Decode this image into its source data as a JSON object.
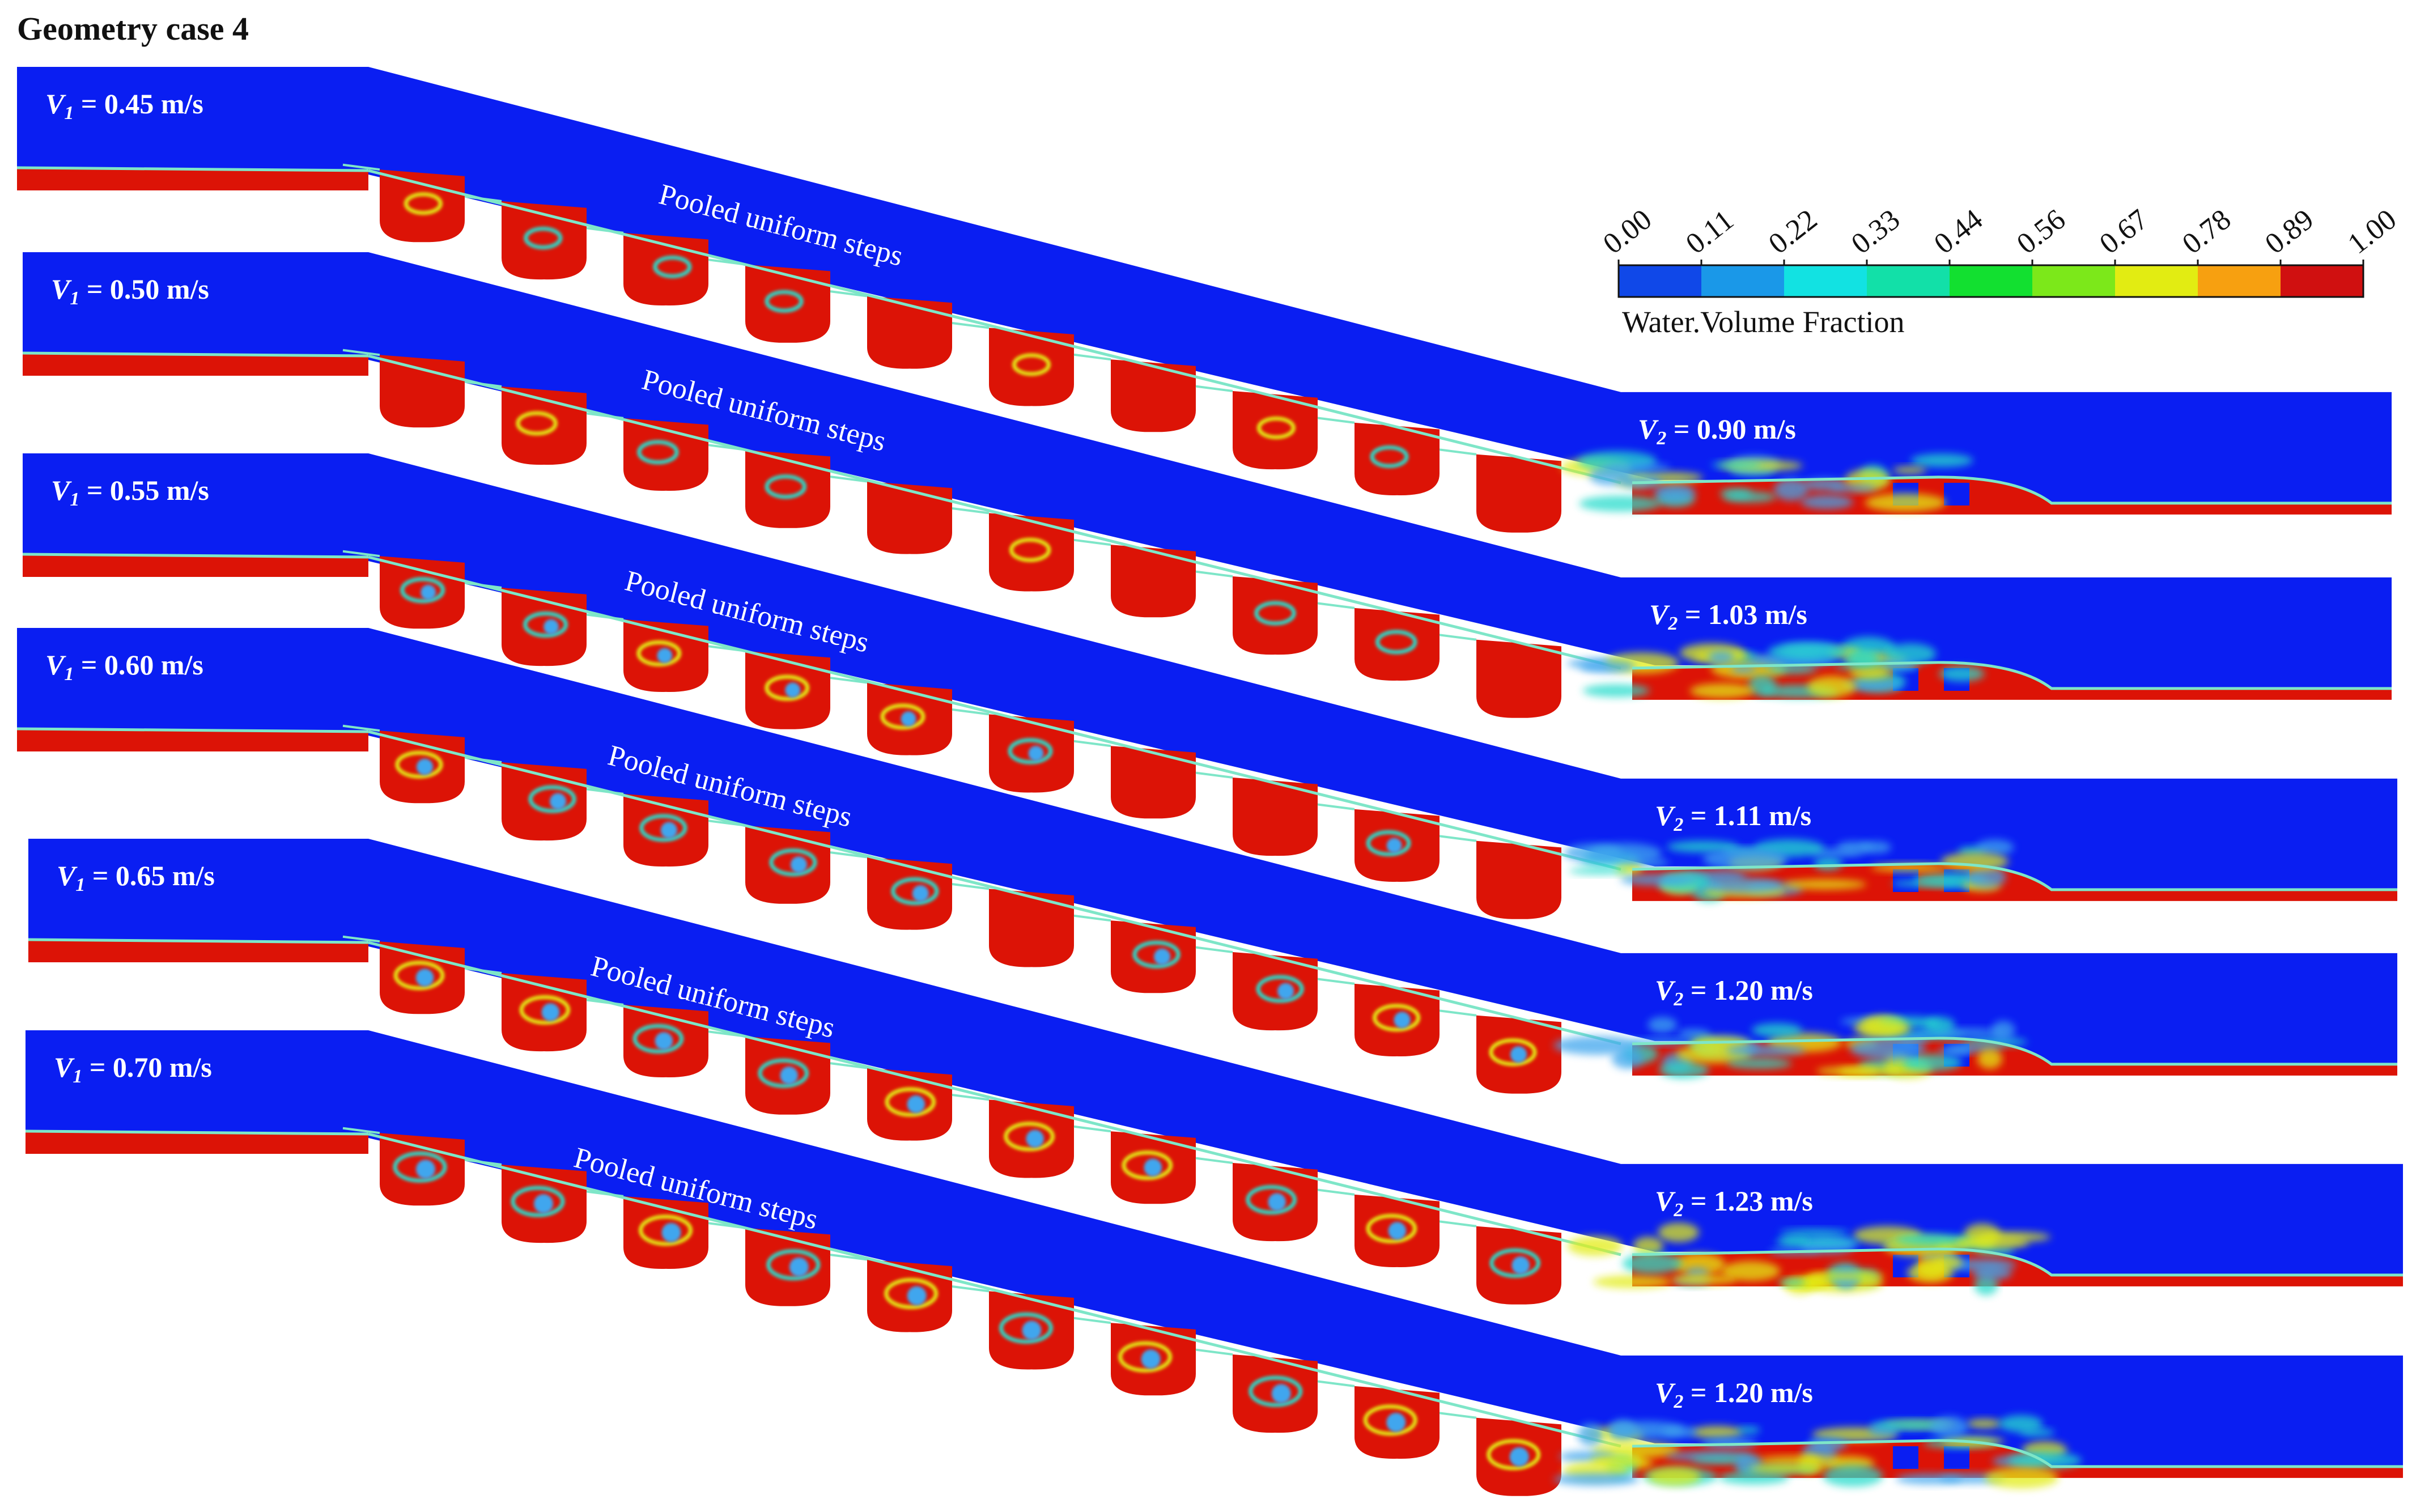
{
  "title": "Geometry case 4",
  "legend": {
    "title": "Water.Volume Fraction",
    "ticks": [
      "0.00",
      "0.11",
      "0.22",
      "0.33",
      "0.44",
      "0.56",
      "0.67",
      "0.78",
      "0.89",
      "1.00"
    ],
    "colors": [
      "#1048e8",
      "#1a98e8",
      "#12e2e2",
      "#12e0a8",
      "#12e030",
      "#7ce81a",
      "#e2ec12",
      "#f7a010",
      "#d01010"
    ]
  },
  "colors": {
    "air": "#0a1ef2",
    "water": "#dc1306",
    "interface": "#7ee6c8",
    "mix_light": "#3fa6ee",
    "mix_cyan": "#26dccc",
    "mix_yellow": "#e2ec12"
  },
  "step_label": "Pooled uniform steps",
  "step_count": 10,
  "cases": [
    {
      "v1_symbol": "V",
      "v1_sub": "1",
      "v1_value": " = 0.45 m/s",
      "v2_symbol": "V",
      "v2_sub": "2",
      "v2_value": " = 0.90 m/s",
      "mixing": 0.25
    },
    {
      "v1_symbol": "V",
      "v1_sub": "1",
      "v1_value": " = 0.50 m/s",
      "v2_symbol": "V",
      "v2_sub": "2",
      "v2_value": " = 1.03 m/s",
      "mixing": 0.4
    },
    {
      "v1_symbol": "V",
      "v1_sub": "1",
      "v1_value": " = 0.55 m/s",
      "v2_symbol": "V",
      "v2_sub": "2",
      "v2_value": " = 1.11 m/s",
      "mixing": 0.55
    },
    {
      "v1_symbol": "V",
      "v1_sub": "1",
      "v1_value": " = 0.60 m/s",
      "v2_symbol": "V",
      "v2_sub": "2",
      "v2_value": " = 1.20 m/s",
      "mixing": 0.7
    },
    {
      "v1_symbol": "V",
      "v1_sub": "1",
      "v1_value": " = 0.65 m/s",
      "v2_symbol": "V",
      "v2_sub": "2",
      "v2_value": " = 1.23  m/s",
      "mixing": 0.85
    },
    {
      "v1_symbol": "V",
      "v1_sub": "1",
      "v1_value": " = 0.70 m/s",
      "v2_symbol": "V",
      "v2_sub": "2",
      "v2_value": " = 1.20 m/s",
      "mixing": 1.0
    }
  ]
}
